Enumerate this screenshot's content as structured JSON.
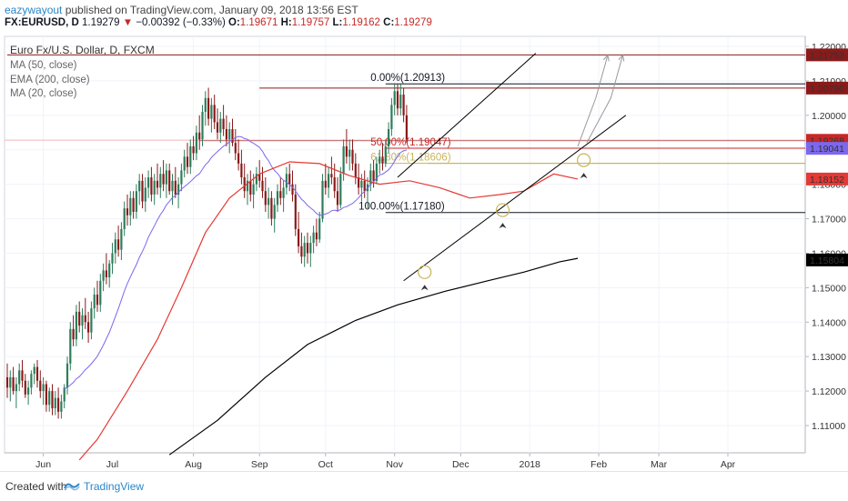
{
  "header": {
    "author": "eazywayout",
    "published_text": " published on TradingView.com, January 09, 2018 13:56 EST",
    "symbol": "FX:EURUSD, D",
    "last": " 1.19279",
    "change_arrow": "▼",
    "change": " −0.00392 (−0.33%)",
    "o_label": " O:",
    "o_value": "1.19671",
    "h_label": " H:",
    "h_value": "1.19757",
    "l_label": " L:",
    "l_value": "1.19162",
    "c_label": " C:",
    "c_value": "1.19279"
  },
  "legend": {
    "title": "Euro Fx/U.S. Dollar, D, FXCM",
    "items": [
      "MA (50, close)",
      "EMA (200, close)",
      "MA (20, close)"
    ]
  },
  "footer": {
    "created_with": "Created with",
    "brand": "TradingView"
  },
  "colors": {
    "up": "#26a69a",
    "up_dark": "#2e7d5b",
    "down": "#8b1a1a",
    "ma50": "#e53935",
    "ema200": "#000000",
    "ma20": "#7b68ee",
    "hline": "#8b1a1a",
    "fib_gold": "#c8b45a"
  },
  "chart_data": {
    "type": "candlestick",
    "y_axis": {
      "min": 1.1,
      "max": 1.225,
      "ticks": [
        "1.11000",
        "1.12000",
        "1.13000",
        "1.14000",
        "1.15000",
        "1.16000",
        "1.17000",
        "1.18000",
        "1.19000",
        "1.20000",
        "1.21000",
        "1.22000"
      ]
    },
    "x_axis": {
      "labels": [
        {
          "label": "Jun",
          "t": 12
        },
        {
          "label": "Aug",
          "t": 62
        },
        {
          "label": "Sep",
          "t": 84
        },
        {
          "label": "Oct",
          "t": 106
        },
        {
          "label": "Nov",
          "t": 129
        },
        {
          "label": "Dec",
          "t": 151
        },
        {
          "label": "2018",
          "t": 174
        },
        {
          "label": "Feb",
          "t": 197
        },
        {
          "label": "Mar",
          "t": 217
        },
        {
          "label": "Apr",
          "t": 240
        }
      ],
      "jul_label": "Jul"
    },
    "price_labels": [
      {
        "value": "1.21753",
        "price": 1.21753,
        "color": "#8b1a1a"
      },
      {
        "value": "1.20790",
        "price": 1.2079,
        "color": "#8b1a1a"
      },
      {
        "value": "1.19279",
        "price": 1.19279,
        "color": "#e57373"
      },
      {
        "value": "1.19268",
        "price": 1.19268,
        "color": "#c62828"
      },
      {
        "value": "1.19041",
        "price": 1.19041,
        "color": "#7b68ee"
      },
      {
        "value": "1.18152",
        "price": 1.18152,
        "color": "#e53935"
      },
      {
        "value": "1.15804",
        "price": 1.15804,
        "color": "#000000"
      }
    ],
    "fib_levels": [
      {
        "label": "0.00%(1.20913)",
        "price": 1.20913,
        "color": "#131722"
      },
      {
        "label": "50.00%(1.19047)",
        "price": 1.19047,
        "color": "#c62828"
      },
      {
        "label": "61.80%(1.18606)",
        "price": 1.18606,
        "color": "#c8b45a"
      },
      {
        "label": "100.00%(1.17180)",
        "price": 1.1718,
        "color": "#131722"
      }
    ],
    "horizontal_lines": [
      {
        "price": 1.21753,
        "from_t": 0,
        "color": "#8b1a1a"
      },
      {
        "price": 1.2079,
        "from_t": 84,
        "color": "#8b1a1a"
      },
      {
        "price": 1.19268,
        "from_t": 64,
        "color": "#8b1a1a"
      },
      {
        "price": 1.18606,
        "from_t": 140,
        "color": "#c8b45a"
      }
    ],
    "channel": {
      "upper": [
        [
          130,
          1.182
        ],
        [
          176,
          1.218
        ]
      ],
      "lower": [
        [
          132,
          1.152
        ],
        [
          206,
          1.2
        ]
      ]
    },
    "candles_ohlc": [
      [
        1.124,
        1.128,
        1.118,
        1.121
      ],
      [
        1.121,
        1.126,
        1.117,
        1.124
      ],
      [
        1.124,
        1.127,
        1.119,
        1.12
      ],
      [
        1.12,
        1.124,
        1.115,
        1.122
      ],
      [
        1.122,
        1.128,
        1.12,
        1.126
      ],
      [
        1.126,
        1.129,
        1.121,
        1.123
      ],
      [
        1.123,
        1.125,
        1.118,
        1.119
      ],
      [
        1.119,
        1.123,
        1.116,
        1.121
      ],
      [
        1.121,
        1.126,
        1.119,
        1.125
      ],
      [
        1.125,
        1.128,
        1.122,
        1.127
      ],
      [
        1.127,
        1.129,
        1.121,
        1.123
      ],
      [
        1.123,
        1.126,
        1.118,
        1.12
      ],
      [
        1.12,
        1.124,
        1.116,
        1.122
      ],
      [
        1.122,
        1.123,
        1.114,
        1.116
      ],
      [
        1.116,
        1.121,
        1.114,
        1.12
      ],
      [
        1.12,
        1.122,
        1.113,
        1.115
      ],
      [
        1.115,
        1.12,
        1.113,
        1.118
      ],
      [
        1.118,
        1.121,
        1.112,
        1.114
      ],
      [
        1.114,
        1.119,
        1.112,
        1.117
      ],
      [
        1.117,
        1.122,
        1.115,
        1.121
      ],
      [
        1.121,
        1.13,
        1.119,
        1.128
      ],
      [
        1.128,
        1.14,
        1.126,
        1.138
      ],
      [
        1.138,
        1.142,
        1.133,
        1.135
      ],
      [
        1.135,
        1.145,
        1.133,
        1.143
      ],
      [
        1.143,
        1.146,
        1.137,
        1.139
      ],
      [
        1.139,
        1.144,
        1.135,
        1.142
      ],
      [
        1.142,
        1.147,
        1.138,
        1.14
      ],
      [
        1.14,
        1.143,
        1.134,
        1.137
      ],
      [
        1.137,
        1.146,
        1.135,
        1.144
      ],
      [
        1.144,
        1.15,
        1.141,
        1.148
      ],
      [
        1.148,
        1.152,
        1.143,
        1.145
      ],
      [
        1.145,
        1.154,
        1.143,
        1.152
      ],
      [
        1.152,
        1.157,
        1.149,
        1.155
      ],
      [
        1.155,
        1.16,
        1.151,
        1.153
      ],
      [
        1.153,
        1.158,
        1.15,
        1.157
      ],
      [
        1.157,
        1.163,
        1.154,
        1.16
      ],
      [
        1.16,
        1.166,
        1.157,
        1.164
      ],
      [
        1.164,
        1.168,
        1.159,
        1.161
      ],
      [
        1.161,
        1.169,
        1.158,
        1.167
      ],
      [
        1.167,
        1.175,
        1.165,
        1.173
      ],
      [
        1.173,
        1.177,
        1.168,
        1.171
      ],
      [
        1.171,
        1.178,
        1.168,
        1.176
      ],
      [
        1.176,
        1.178,
        1.17,
        1.172
      ],
      [
        1.172,
        1.18,
        1.17,
        1.178
      ],
      [
        1.178,
        1.183,
        1.174,
        1.181
      ],
      [
        1.181,
        1.183,
        1.173,
        1.175
      ],
      [
        1.175,
        1.182,
        1.172,
        1.179
      ],
      [
        1.179,
        1.184,
        1.176,
        1.182
      ],
      [
        1.182,
        1.185,
        1.175,
        1.177
      ],
      [
        1.177,
        1.183,
        1.174,
        1.181
      ],
      [
        1.181,
        1.186,
        1.177,
        1.179
      ],
      [
        1.179,
        1.185,
        1.176,
        1.183
      ],
      [
        1.183,
        1.187,
        1.178,
        1.18
      ],
      [
        1.18,
        1.186,
        1.176,
        1.184
      ],
      [
        1.184,
        1.186,
        1.177,
        1.178
      ],
      [
        1.178,
        1.183,
        1.174,
        1.181
      ],
      [
        1.181,
        1.185,
        1.176,
        1.177
      ],
      [
        1.177,
        1.182,
        1.173,
        1.18
      ],
      [
        1.18,
        1.186,
        1.178,
        1.184
      ],
      [
        1.184,
        1.19,
        1.182,
        1.188
      ],
      [
        1.188,
        1.192,
        1.183,
        1.185
      ],
      [
        1.185,
        1.193,
        1.183,
        1.191
      ],
      [
        1.191,
        1.194,
        1.187,
        1.189
      ],
      [
        1.189,
        1.197,
        1.187,
        1.195
      ],
      [
        1.195,
        1.2,
        1.19,
        1.193
      ],
      [
        1.193,
        1.203,
        1.191,
        1.201
      ],
      [
        1.201,
        1.207,
        1.197,
        1.205
      ],
      [
        1.205,
        1.208,
        1.197,
        1.199
      ],
      [
        1.199,
        1.205,
        1.195,
        1.203
      ],
      [
        1.203,
        1.206,
        1.196,
        1.198
      ],
      [
        1.198,
        1.202,
        1.193,
        1.195
      ],
      [
        1.195,
        1.201,
        1.192,
        1.199
      ],
      [
        1.199,
        1.203,
        1.194,
        1.196
      ],
      [
        1.196,
        1.2,
        1.191,
        1.193
      ],
      [
        1.193,
        1.198,
        1.189,
        1.196
      ],
      [
        1.196,
        1.199,
        1.191,
        1.192
      ],
      [
        1.192,
        1.196,
        1.187,
        1.189
      ],
      [
        1.189,
        1.193,
        1.184,
        1.186
      ],
      [
        1.186,
        1.19,
        1.18,
        1.182
      ],
      [
        1.182,
        1.186,
        1.176,
        1.178
      ],
      [
        1.178,
        1.183,
        1.174,
        1.181
      ],
      [
        1.181,
        1.184,
        1.175,
        1.177
      ],
      [
        1.177,
        1.183,
        1.173,
        1.18
      ],
      [
        1.18,
        1.185,
        1.178,
        1.183
      ],
      [
        1.183,
        1.187,
        1.179,
        1.181
      ],
      [
        1.181,
        1.185,
        1.176,
        1.178
      ],
      [
        1.178,
        1.182,
        1.172,
        1.174
      ],
      [
        1.174,
        1.179,
        1.17,
        1.176
      ],
      [
        1.176,
        1.178,
        1.168,
        1.17
      ],
      [
        1.17,
        1.176,
        1.166,
        1.174
      ],
      [
        1.174,
        1.18,
        1.172,
        1.178
      ],
      [
        1.178,
        1.182,
        1.174,
        1.176
      ],
      [
        1.176,
        1.181,
        1.172,
        1.179
      ],
      [
        1.179,
        1.185,
        1.177,
        1.183
      ],
      [
        1.183,
        1.186,
        1.178,
        1.18
      ],
      [
        1.18,
        1.184,
        1.175,
        1.177
      ],
      [
        1.177,
        1.18,
        1.165,
        1.167
      ],
      [
        1.167,
        1.172,
        1.16,
        1.162
      ],
      [
        1.162,
        1.166,
        1.157,
        1.159
      ],
      [
        1.159,
        1.165,
        1.156,
        1.163
      ],
      [
        1.163,
        1.166,
        1.157,
        1.16
      ],
      [
        1.16,
        1.165,
        1.156,
        1.163
      ],
      [
        1.163,
        1.168,
        1.16,
        1.166
      ],
      [
        1.166,
        1.17,
        1.162,
        1.164
      ],
      [
        1.164,
        1.172,
        1.163,
        1.17
      ],
      [
        1.17,
        1.183,
        1.169,
        1.181
      ],
      [
        1.181,
        1.186,
        1.177,
        1.179
      ],
      [
        1.179,
        1.185,
        1.176,
        1.183
      ],
      [
        1.183,
        1.188,
        1.18,
        1.182
      ],
      [
        1.182,
        1.186,
        1.176,
        1.178
      ],
      [
        1.178,
        1.182,
        1.172,
        1.174
      ],
      [
        1.174,
        1.185,
        1.173,
        1.183
      ],
      [
        1.183,
        1.193,
        1.181,
        1.191
      ],
      [
        1.191,
        1.196,
        1.186,
        1.188
      ],
      [
        1.188,
        1.193,
        1.184,
        1.19
      ],
      [
        1.19,
        1.193,
        1.184,
        1.186
      ],
      [
        1.186,
        1.189,
        1.18,
        1.182
      ],
      [
        1.182,
        1.186,
        1.177,
        1.179
      ],
      [
        1.179,
        1.183,
        1.175,
        1.181
      ],
      [
        1.181,
        1.184,
        1.176,
        1.178
      ],
      [
        1.178,
        1.182,
        1.173,
        1.18
      ],
      [
        1.18,
        1.186,
        1.178,
        1.184
      ],
      [
        1.184,
        1.187,
        1.179,
        1.181
      ],
      [
        1.181,
        1.188,
        1.18,
        1.186
      ],
      [
        1.186,
        1.19,
        1.183,
        1.188
      ],
      [
        1.188,
        1.192,
        1.184,
        1.186
      ],
      [
        1.186,
        1.193,
        1.185,
        1.191
      ],
      [
        1.191,
        1.198,
        1.189,
        1.196
      ],
      [
        1.196,
        1.205,
        1.194,
        1.203
      ],
      [
        1.203,
        1.209,
        1.2,
        1.207
      ],
      [
        1.207,
        1.209,
        1.2,
        1.202
      ],
      [
        1.202,
        1.209,
        1.2,
        1.206
      ],
      [
        1.206,
        1.208,
        1.198,
        1.2
      ],
      [
        1.2,
        1.203,
        1.192,
        1.193
      ]
    ]
  }
}
